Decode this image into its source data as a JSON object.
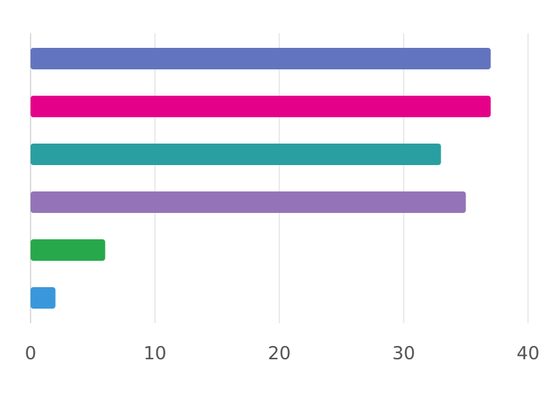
{
  "chart_data": {
    "type": "bar",
    "orientation": "horizontal",
    "title": "",
    "xlabel": "",
    "ylabel": "",
    "xlim": [
      0,
      40
    ],
    "x_ticks": [
      0,
      10,
      20,
      30,
      40
    ],
    "x_tick_labels": [
      "0",
      "10",
      "20",
      "30",
      "40"
    ],
    "grid": true,
    "legend": "none",
    "values": [
      37,
      37,
      33,
      35,
      6,
      2
    ],
    "colors": [
      "#6374bf",
      "#e5008a",
      "#2a9fa1",
      "#9474b7",
      "#27a84b",
      "#3a97dc"
    ]
  }
}
